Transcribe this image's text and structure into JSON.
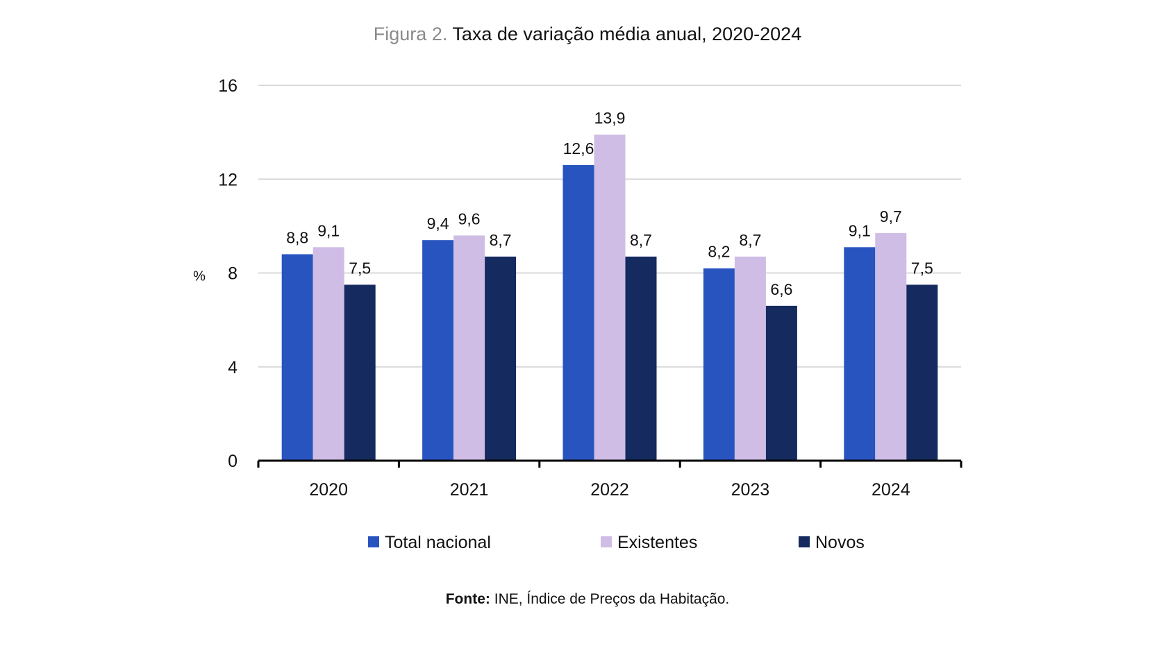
{
  "figure": {
    "label": "Figura 2.",
    "title": "Taxa de variação média anual, 2020-2024"
  },
  "source": {
    "label": "Fonte:",
    "text": "INE, Índice de Preços da Habitação."
  },
  "chart_data": {
    "type": "bar",
    "categories": [
      "2020",
      "2021",
      "2022",
      "2023",
      "2024"
    ],
    "series": [
      {
        "name": "Total nacional",
        "color": "#2854c0",
        "values": [
          8.8,
          9.4,
          12.6,
          8.2,
          9.1
        ],
        "labels": [
          "8,8",
          "9,4",
          "12,6",
          "8,2",
          "9,1"
        ]
      },
      {
        "name": "Existentes",
        "color": "#cfbde6",
        "values": [
          9.1,
          9.6,
          13.9,
          8.7,
          9.7
        ],
        "labels": [
          "9,1",
          "9,6",
          "13,9",
          "8,7",
          "9,7"
        ]
      },
      {
        "name": "Novos",
        "color": "#152a5e",
        "values": [
          7.5,
          8.7,
          8.7,
          6.6,
          7.5
        ],
        "labels": [
          "7,5",
          "8,7",
          "8,7",
          "6,6",
          "7,5"
        ]
      }
    ],
    "ylabel": "%",
    "ylim": [
      0,
      16
    ],
    "yticks": [
      0,
      4,
      8,
      12,
      16
    ],
    "grid": true,
    "legend_position": "bottom",
    "data_labels": true
  }
}
